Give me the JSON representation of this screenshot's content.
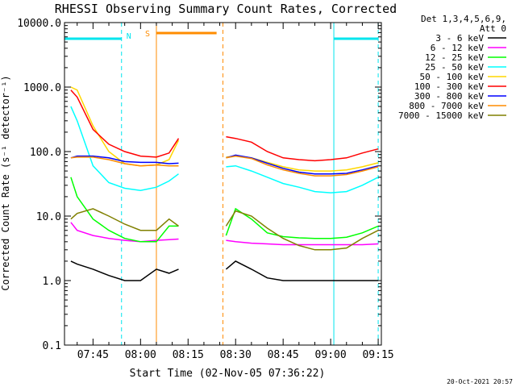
{
  "chart_data": {
    "type": "line",
    "title": "RHESSI Observing Summary Count Rates, Corrected",
    "xlabel": "Start Time (02-Nov-05 07:36:22)",
    "ylabel": "Corrected Count Rate (s⁻¹ detector⁻¹)",
    "y_scale": "log",
    "ylim": [
      0.1,
      10000
    ],
    "xlim": [
      "07:36",
      "09:16"
    ],
    "x_ticks": [
      "07:45",
      "08:00",
      "08:15",
      "08:30",
      "08:45",
      "09:00",
      "09:15"
    ],
    "y_ticks": [
      "0.1",
      "1.0",
      "10.0",
      "100.0",
      "1000.0",
      "10000.0"
    ],
    "legend_title_1": "Det 1,3,4,5,6,9,",
    "legend_title_2": "Att 0",
    "legend_position": "right",
    "timestamp": "20-Oct-2021 20:57",
    "annotations": {
      "night": "N",
      "saa": "S",
      "night_bars": [
        [
          "07:36",
          "07:54"
        ],
        [
          "09:01",
          "09:15"
        ]
      ],
      "saa_bar": [
        "08:05",
        "08:24"
      ],
      "data_gap": [
        "08:12",
        "08:26"
      ]
    },
    "x": [
      "07:38",
      "07:40",
      "07:45",
      "07:50",
      "07:55",
      "08:00",
      "08:05",
      "08:09",
      "08:12",
      "08:27",
      "08:30",
      "08:35",
      "08:40",
      "08:45",
      "08:50",
      "08:55",
      "09:00",
      "09:05",
      "09:10",
      "09:15"
    ],
    "series": [
      {
        "name": "3 - 6 keV",
        "color": "#000000",
        "values": [
          2,
          1.8,
          1.5,
          1.2,
          1.0,
          1.0,
          1.5,
          1.3,
          1.5,
          1.5,
          2.0,
          1.5,
          1.1,
          1.0,
          1.0,
          1.0,
          1.0,
          1.0,
          1.0,
          1.0
        ]
      },
      {
        "name": "6 - 12 keV",
        "color": "#ff00ff",
        "values": [
          8,
          6,
          5,
          4.5,
          4.2,
          4.0,
          4.2,
          4.3,
          4.4,
          4.2,
          4.0,
          3.8,
          3.7,
          3.6,
          3.6,
          3.6,
          3.6,
          3.6,
          3.6,
          3.7
        ]
      },
      {
        "name": "12 - 25 keV",
        "color": "#00ff00",
        "values": [
          40,
          20,
          9,
          6,
          4.5,
          4,
          4,
          7,
          7,
          5,
          13,
          9,
          5.5,
          4.8,
          4.6,
          4.5,
          4.5,
          4.7,
          5.5,
          7
        ]
      },
      {
        "name": "25 - 50 keV",
        "color": "#00ffff",
        "values": [
          500,
          300,
          60,
          33,
          27,
          25,
          28,
          35,
          45,
          58,
          60,
          50,
          40,
          32,
          28,
          24,
          23,
          24,
          30,
          40
        ]
      },
      {
        "name": "50 - 100 keV",
        "color": "#ffd700",
        "values": [
          1000,
          900,
          250,
          100,
          65,
          60,
          62,
          75,
          150,
          82,
          85,
          80,
          68,
          58,
          52,
          50,
          50,
          52,
          58,
          67
        ]
      },
      {
        "name": "100 - 300 keV",
        "color": "#ff0000",
        "values": [
          900,
          700,
          220,
          130,
          100,
          85,
          82,
          95,
          160,
          170,
          160,
          140,
          100,
          80,
          75,
          72,
          75,
          80,
          95,
          110
        ]
      },
      {
        "name": "300 - 800 keV",
        "color": "#0000ff",
        "values": [
          80,
          85,
          85,
          80,
          70,
          68,
          68,
          65,
          66,
          80,
          88,
          80,
          66,
          55,
          48,
          45,
          45,
          46,
          52,
          60
        ]
      },
      {
        "name": "800 - 7000 keV",
        "color": "#ff8c00",
        "values": [
          80,
          82,
          82,
          75,
          65,
          60,
          62,
          60,
          60,
          80,
          85,
          78,
          62,
          52,
          46,
          42,
          42,
          44,
          50,
          58
        ]
      },
      {
        "name": "7000 - 15000 keV",
        "color": "#808000",
        "values": [
          9,
          11,
          13,
          10,
          7.5,
          6,
          6,
          9,
          7,
          7,
          12,
          10,
          6.5,
          4.5,
          3.5,
          3,
          3,
          3.2,
          4.5,
          6
        ]
      }
    ]
  }
}
